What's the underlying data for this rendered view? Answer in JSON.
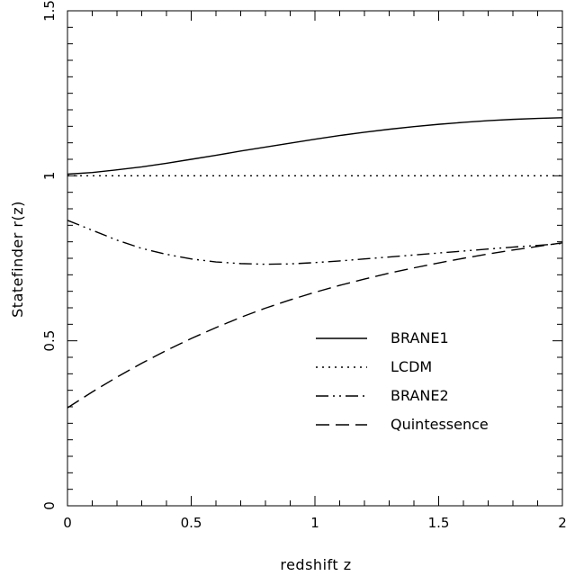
{
  "chart_data": {
    "type": "line",
    "title": "",
    "xlabel": "redshift z",
    "ylabel": "Statefinder r(z)",
    "xlim": [
      0,
      2
    ],
    "ylim": [
      0,
      1.5
    ],
    "x_ticks": [
      "0",
      "0.5",
      "1",
      "1.5",
      "2"
    ],
    "y_ticks": [
      "0",
      "0.5",
      "1",
      "1.5"
    ],
    "grid": false,
    "legend_position": "center-right",
    "series": [
      {
        "name": "BRANE1",
        "style": "solid",
        "color": "#000000",
        "x": [
          0,
          0.1,
          0.2,
          0.3,
          0.4,
          0.5,
          0.6,
          0.7,
          0.8,
          0.9,
          1.0,
          1.1,
          1.2,
          1.3,
          1.4,
          1.5,
          1.6,
          1.7,
          1.8,
          1.9,
          2.0
        ],
        "y": [
          1.005,
          1.01,
          1.018,
          1.027,
          1.038,
          1.05,
          1.062,
          1.075,
          1.087,
          1.099,
          1.111,
          1.122,
          1.132,
          1.141,
          1.149,
          1.156,
          1.162,
          1.167,
          1.171,
          1.174,
          1.176
        ]
      },
      {
        "name": "LCDM",
        "style": "dotted",
        "color": "#000000",
        "x": [
          0,
          2
        ],
        "y": [
          1.0,
          1.0
        ]
      },
      {
        "name": "BRANE2",
        "style": "dash-dot-dot",
        "color": "#000000",
        "x": [
          0,
          0.1,
          0.2,
          0.3,
          0.4,
          0.5,
          0.6,
          0.7,
          0.8,
          0.9,
          1.0,
          1.1,
          1.2,
          1.3,
          1.4,
          1.5,
          1.6,
          1.7,
          1.8,
          1.9,
          2.0
        ],
        "y": [
          0.865,
          0.835,
          0.805,
          0.78,
          0.762,
          0.748,
          0.739,
          0.734,
          0.732,
          0.733,
          0.737,
          0.742,
          0.748,
          0.754,
          0.76,
          0.766,
          0.772,
          0.778,
          0.784,
          0.789,
          0.795
        ]
      },
      {
        "name": "Quintessence",
        "style": "dashed",
        "color": "#000000",
        "x": [
          0,
          0.1,
          0.2,
          0.3,
          0.4,
          0.5,
          0.6,
          0.7,
          0.8,
          0.9,
          1.0,
          1.1,
          1.2,
          1.3,
          1.4,
          1.5,
          1.6,
          1.7,
          1.8,
          1.9,
          2.0
        ],
        "y": [
          0.297,
          0.345,
          0.39,
          0.432,
          0.471,
          0.507,
          0.54,
          0.571,
          0.599,
          0.624,
          0.647,
          0.668,
          0.687,
          0.705,
          0.721,
          0.736,
          0.75,
          0.763,
          0.775,
          0.786,
          0.797
        ]
      }
    ]
  }
}
